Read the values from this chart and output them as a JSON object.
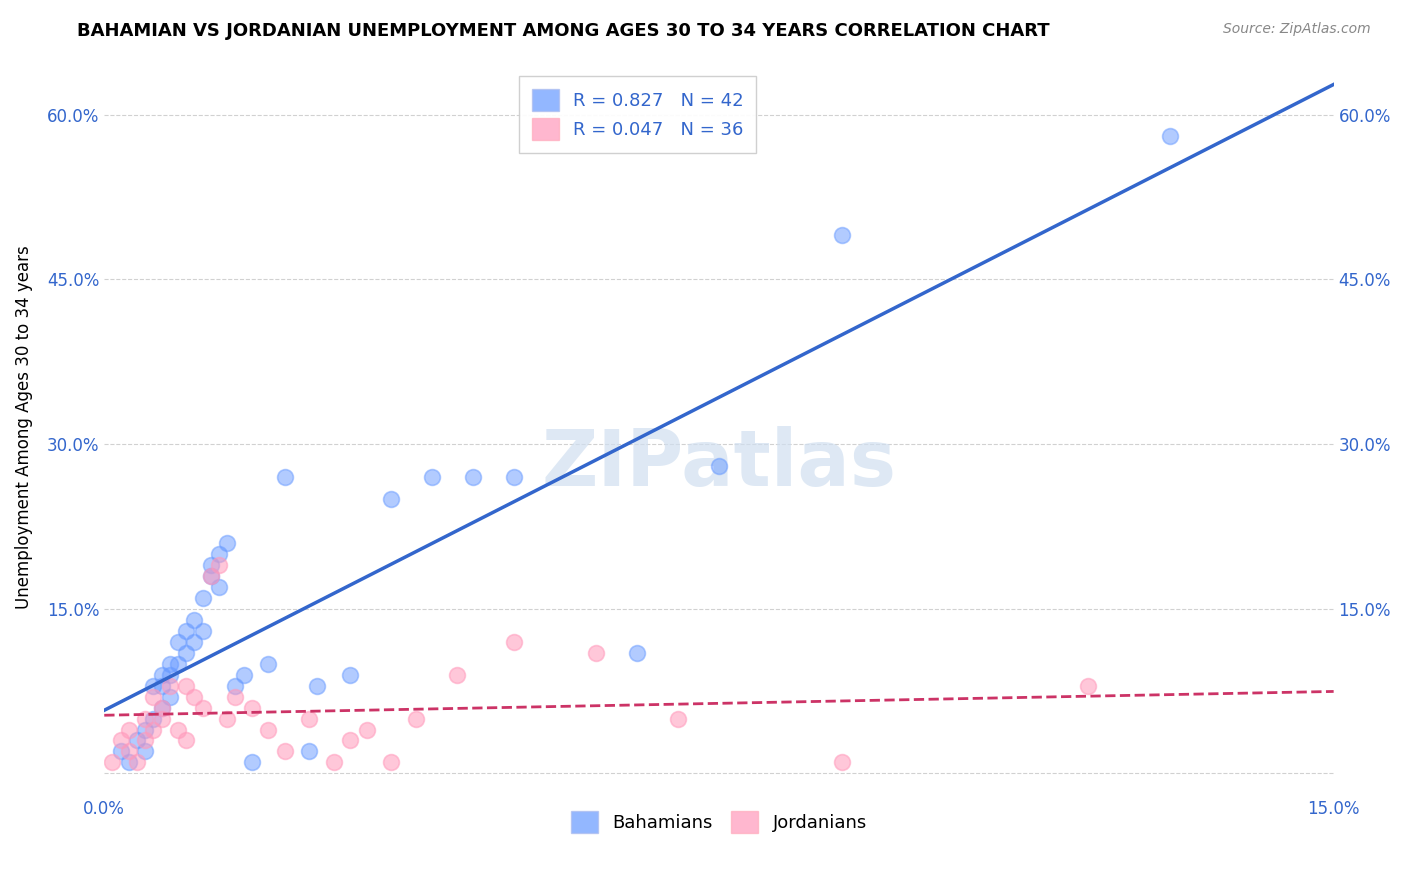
{
  "title": "BAHAMIAN VS JORDANIAN UNEMPLOYMENT AMONG AGES 30 TO 34 YEARS CORRELATION CHART",
  "source": "Source: ZipAtlas.com",
  "ylabel": "Unemployment Among Ages 30 to 34 years",
  "xlim": [
    0.0,
    0.15
  ],
  "ylim": [
    -0.02,
    0.65
  ],
  "xticks": [
    0.0,
    0.03,
    0.06,
    0.09,
    0.12,
    0.15
  ],
  "xtick_labels": [
    "0.0%",
    "",
    "",
    "",
    "",
    "15.0%"
  ],
  "yticks": [
    0.0,
    0.15,
    0.3,
    0.45,
    0.6
  ],
  "ytick_labels": [
    "",
    "15.0%",
    "30.0%",
    "45.0%",
    "60.0%"
  ],
  "bahamian_color": "#6699ff",
  "jordanian_color": "#ff99bb",
  "bahamian_line_color": "#3366cc",
  "jordanian_line_color": "#cc3366",
  "R_bahamian": 0.827,
  "N_bahamian": 42,
  "R_jordanian": 0.047,
  "N_jordanian": 36,
  "watermark": "ZIPatlas",
  "background_color": "#ffffff",
  "grid_color": "#cccccc",
  "bahamians_x": [
    0.002,
    0.003,
    0.004,
    0.005,
    0.005,
    0.006,
    0.006,
    0.007,
    0.007,
    0.007,
    0.008,
    0.008,
    0.008,
    0.009,
    0.009,
    0.01,
    0.01,
    0.011,
    0.011,
    0.012,
    0.012,
    0.013,
    0.013,
    0.014,
    0.014,
    0.015,
    0.016,
    0.017,
    0.018,
    0.02,
    0.022,
    0.025,
    0.026,
    0.03,
    0.035,
    0.04,
    0.045,
    0.05,
    0.065,
    0.075,
    0.09,
    0.13
  ],
  "bahamians_y": [
    0.02,
    0.01,
    0.03,
    0.04,
    0.02,
    0.05,
    0.08,
    0.09,
    0.08,
    0.06,
    0.1,
    0.07,
    0.09,
    0.1,
    0.12,
    0.13,
    0.11,
    0.12,
    0.14,
    0.16,
    0.13,
    0.19,
    0.18,
    0.2,
    0.17,
    0.21,
    0.08,
    0.09,
    0.01,
    0.1,
    0.27,
    0.02,
    0.08,
    0.09,
    0.25,
    0.27,
    0.27,
    0.27,
    0.11,
    0.28,
    0.49,
    0.58
  ],
  "jordanians_x": [
    0.001,
    0.002,
    0.003,
    0.003,
    0.004,
    0.005,
    0.005,
    0.006,
    0.006,
    0.007,
    0.007,
    0.008,
    0.009,
    0.01,
    0.01,
    0.011,
    0.012,
    0.013,
    0.014,
    0.015,
    0.016,
    0.018,
    0.02,
    0.022,
    0.025,
    0.028,
    0.03,
    0.032,
    0.035,
    0.038,
    0.043,
    0.05,
    0.06,
    0.07,
    0.09,
    0.12
  ],
  "jordanians_y": [
    0.01,
    0.03,
    0.02,
    0.04,
    0.01,
    0.05,
    0.03,
    0.07,
    0.04,
    0.06,
    0.05,
    0.08,
    0.04,
    0.03,
    0.08,
    0.07,
    0.06,
    0.18,
    0.19,
    0.05,
    0.07,
    0.06,
    0.04,
    0.02,
    0.05,
    0.01,
    0.03,
    0.04,
    0.01,
    0.05,
    0.09,
    0.12,
    0.11,
    0.05,
    0.01,
    0.08
  ],
  "title_fontsize": 13,
  "axis_label_fontsize": 12,
  "tick_fontsize": 12,
  "legend_fontsize": 13
}
